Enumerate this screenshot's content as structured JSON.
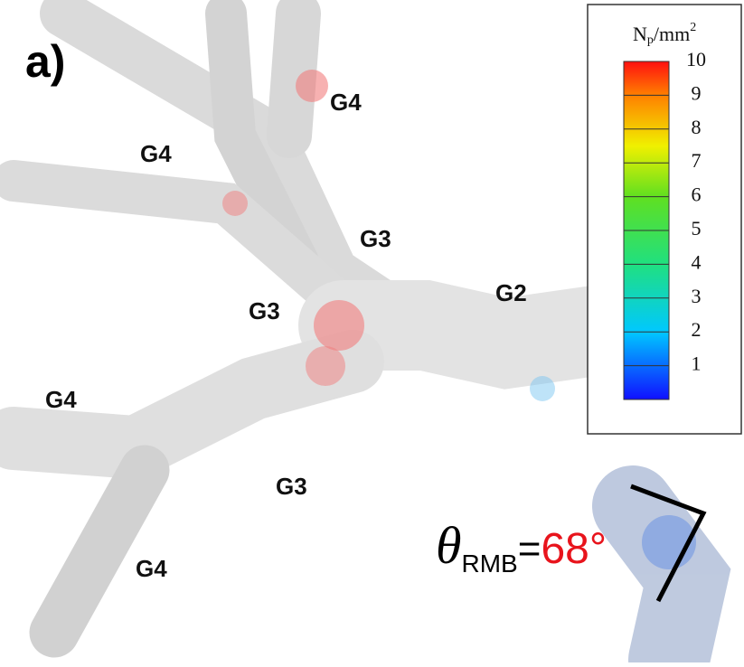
{
  "panel_label": "a)",
  "branch_labels": [
    "G4",
    "G4",
    "G3",
    "G2",
    "G3",
    "G4",
    "G3",
    "G4"
  ],
  "colorbar": {
    "title": {
      "symbol": "N",
      "subscript": "p",
      "unit": "/mm",
      "superscript": "2"
    },
    "range": [
      0,
      10
    ],
    "ticks": [
      1,
      2,
      3,
      4,
      5,
      6,
      7,
      8,
      9,
      10
    ]
  },
  "angle": {
    "symbol": "θ",
    "subscript": "RMB",
    "equals": "=",
    "value": "68°"
  }
}
